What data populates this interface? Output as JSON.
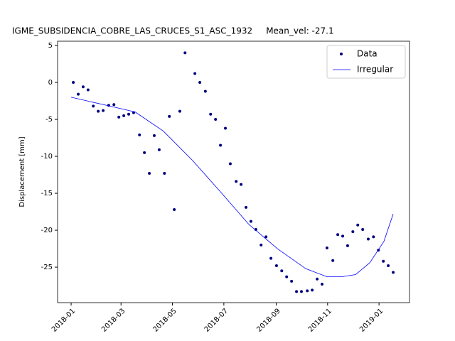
{
  "chart_data": {
    "type": "scatter-line",
    "title": "IGME_SUBSIDENCIA_COBRE_LAS_CRUCES_S1_ASC_1932     Mean_vel: -27.1",
    "y_label": "Displacement [mm]",
    "xlim": [
      2017.956,
      2019.099
    ],
    "ylim": [
      -29.8,
      5.58
    ],
    "xticks": [
      {
        "value": 2018.0,
        "label": "2018-01"
      },
      {
        "value": 2018.162,
        "label": "2018-03"
      },
      {
        "value": 2018.329,
        "label": "2018-05"
      },
      {
        "value": 2018.496,
        "label": "2018-07"
      },
      {
        "value": 2018.666,
        "label": "2018-09"
      },
      {
        "value": 2018.833,
        "label": "2018-11"
      },
      {
        "value": 2019.0,
        "label": "2019-01"
      }
    ],
    "yticks": [
      5,
      0,
      -5,
      -10,
      -15,
      -20,
      -25
    ],
    "legend": "upper right",
    "series": [
      {
        "name": "Data",
        "kind": "points",
        "color": "#00007f",
        "x": [
          2018.007,
          2018.023,
          2018.039,
          2018.055,
          2018.072,
          2018.088,
          2018.104,
          2018.122,
          2018.139,
          2018.155,
          2018.171,
          2018.187,
          2018.203,
          2018.222,
          2018.238,
          2018.254,
          2018.27,
          2018.286,
          2018.303,
          2018.319,
          2018.335,
          2018.353,
          2018.37,
          2018.402,
          2018.418,
          2018.436,
          2018.453,
          2018.469,
          2018.485,
          2018.501,
          2018.517,
          2018.536,
          2018.552,
          2018.568,
          2018.584,
          2018.6,
          2018.617,
          2018.633,
          2018.649,
          2018.667,
          2018.684,
          2018.7,
          2018.716,
          2018.732,
          2018.748,
          2018.767,
          2018.783,
          2018.799,
          2018.815,
          2018.831,
          2018.85,
          2018.866,
          2018.882,
          2018.898,
          2018.915,
          2018.931,
          2018.947,
          2018.965,
          2018.982,
          2018.998,
          2019.014,
          2019.03,
          2019.046
        ],
        "values": [
          0.0,
          -1.6,
          -0.6,
          -1.0,
          -3.2,
          -3.9,
          -3.8,
          -3.1,
          -3.0,
          -4.7,
          -4.5,
          -4.3,
          -4.1,
          -7.1,
          -9.5,
          -12.3,
          -7.2,
          -9.1,
          -12.3,
          -4.6,
          -17.2,
          -3.9,
          4.0,
          1.2,
          0.0,
          -1.2,
          -4.3,
          -5.0,
          -8.5,
          -6.2,
          -11.0,
          -13.4,
          -13.8,
          -16.9,
          -18.8,
          -19.9,
          -22.0,
          -20.9,
          -23.8,
          -24.8,
          -25.5,
          -26.3,
          -26.9,
          -28.3,
          -28.3,
          -28.2,
          -28.1,
          -26.6,
          -27.3,
          -22.4,
          -24.1,
          -20.6,
          -20.8,
          -22.1,
          -20.2,
          -19.3,
          -19.9,
          -21.2,
          -20.9,
          -22.7,
          -24.2,
          -24.8,
          -25.7
        ]
      },
      {
        "name": "Irregular",
        "kind": "line",
        "color": "#0000ff",
        "x": [
          2018.0,
          2018.115,
          2018.208,
          2018.3,
          2018.393,
          2018.485,
          2018.577,
          2018.67,
          2018.762,
          2018.831,
          2018.878,
          2018.924,
          2018.97,
          2019.016,
          2019.046
        ],
        "values": [
          -2.0,
          -3.1,
          -4.0,
          -6.6,
          -10.5,
          -14.8,
          -19.2,
          -22.5,
          -25.2,
          -26.3,
          -26.3,
          -26.0,
          -24.4,
          -21.5,
          -17.8
        ]
      }
    ]
  }
}
